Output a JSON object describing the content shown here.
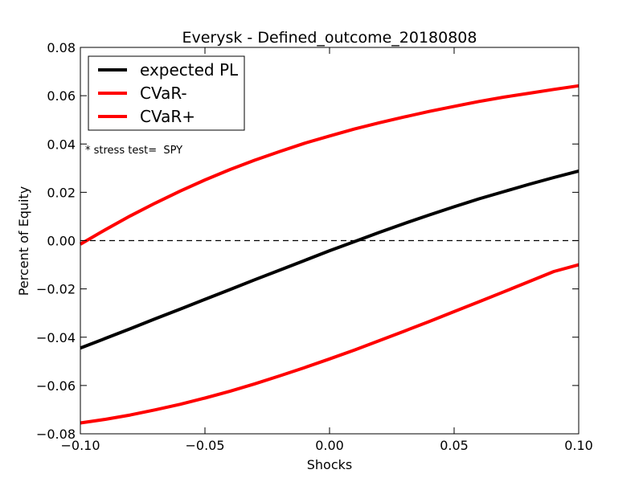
{
  "chart_data": {
    "type": "line",
    "title": "Everysk - Defined_outcome_20180808",
    "xlabel": "Shocks",
    "ylabel": "Percent of Equity",
    "xlim": [
      -0.1,
      0.1
    ],
    "ylim": [
      -0.08,
      0.08
    ],
    "xticks": [
      -0.1,
      -0.05,
      0.0,
      0.05,
      0.1
    ],
    "xtick_labels": [
      "−0.10",
      "−0.05",
      "0.00",
      "0.05",
      "0.10"
    ],
    "yticks": [
      -0.08,
      -0.06,
      -0.04,
      -0.02,
      0.0,
      0.02,
      0.04,
      0.06,
      0.08
    ],
    "ytick_labels": [
      "−0.08",
      "−0.06",
      "−0.04",
      "−0.02",
      "0.00",
      "0.02",
      "0.04",
      "0.06",
      "0.08"
    ],
    "grid": false,
    "legend_position": "upper-left",
    "annotation": "* stress test=  SPY",
    "zero_line": {
      "y": 0.0,
      "style": "dashed",
      "color": "#000000"
    },
    "x": [
      -0.1,
      -0.09,
      -0.08,
      -0.07,
      -0.06,
      -0.05,
      -0.04,
      -0.03,
      -0.02,
      -0.01,
      0.0,
      0.01,
      0.02,
      0.03,
      0.04,
      0.05,
      0.06,
      0.07,
      0.08,
      0.09,
      0.1
    ],
    "series": [
      {
        "name": "expected PL",
        "color": "#000000",
        "values": [
          -0.0445,
          -0.0405,
          -0.0365,
          -0.0324,
          -0.0284,
          -0.0243,
          -0.0203,
          -0.0162,
          -0.0122,
          -0.0082,
          -0.0042,
          -0.0004,
          0.0034,
          0.0071,
          0.0106,
          0.014,
          0.0173,
          0.0203,
          0.0233,
          0.0261,
          0.0288
        ]
      },
      {
        "name": "CVaR-",
        "color": "#ff0000",
        "values": [
          -0.0015,
          0.0045,
          0.0102,
          0.0155,
          0.0205,
          0.0251,
          0.0294,
          0.0333,
          0.0369,
          0.0403,
          0.0433,
          0.0462,
          0.0488,
          0.0512,
          0.0535,
          0.0556,
          0.0576,
          0.0594,
          0.061,
          0.0626,
          0.0641
        ]
      },
      {
        "name": "CVaR+",
        "color": "#ff0000",
        "values": [
          -0.0755,
          -0.074,
          -0.0722,
          -0.0701,
          -0.0678,
          -0.0652,
          -0.0624,
          -0.0593,
          -0.056,
          -0.0526,
          -0.049,
          -0.0453,
          -0.0414,
          -0.0375,
          -0.0335,
          -0.0294,
          -0.0253,
          -0.0212,
          -0.017,
          -0.0128,
          -0.01
        ]
      }
    ]
  }
}
